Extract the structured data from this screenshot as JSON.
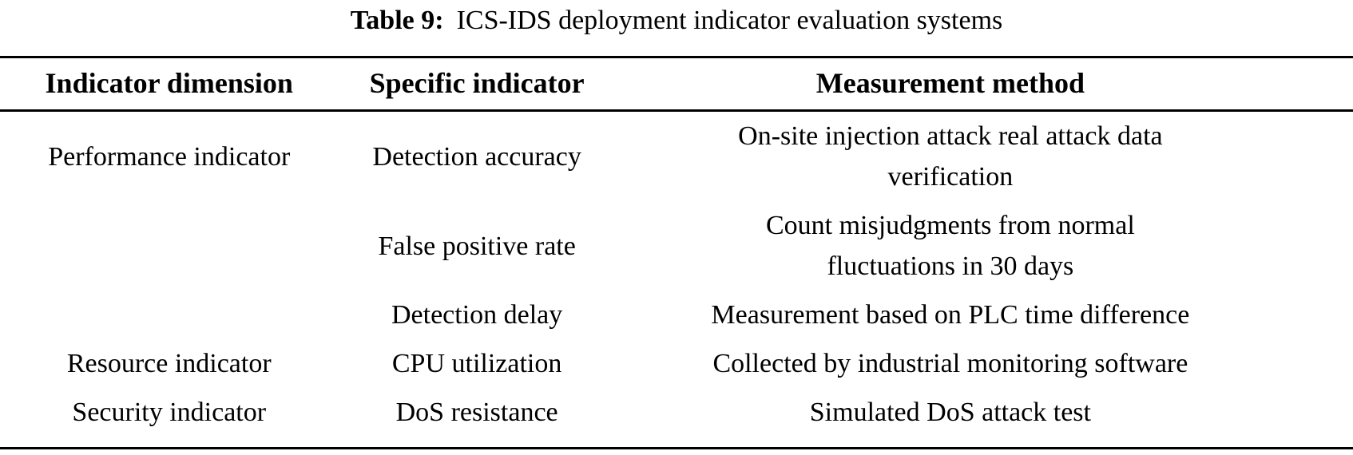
{
  "caption": {
    "label": "Table 9:",
    "text": "ICS-IDS deployment indicator evaluation systems"
  },
  "table": {
    "columns": [
      "Indicator dimension",
      "Specific indicator",
      "Measurement method"
    ],
    "rows": [
      {
        "dimension": "Performance indicator",
        "indicator": "Detection accuracy",
        "method": "On-site injection attack real attack data\nverification"
      },
      {
        "dimension": "",
        "indicator": "False positive rate",
        "method": "Count misjudgments from normal\nfluctuations in 30 days"
      },
      {
        "dimension": "",
        "indicator": "Detection delay",
        "method": "Measurement based on PLC time difference"
      },
      {
        "dimension": "Resource indicator",
        "indicator": "CPU utilization",
        "method": "Collected by industrial monitoring software"
      },
      {
        "dimension": "Security indicator",
        "indicator": "DoS resistance",
        "method": "Simulated DoS attack test"
      }
    ]
  },
  "colors": {
    "text": "#000000",
    "background": "#ffffff",
    "rule": "#000000"
  }
}
